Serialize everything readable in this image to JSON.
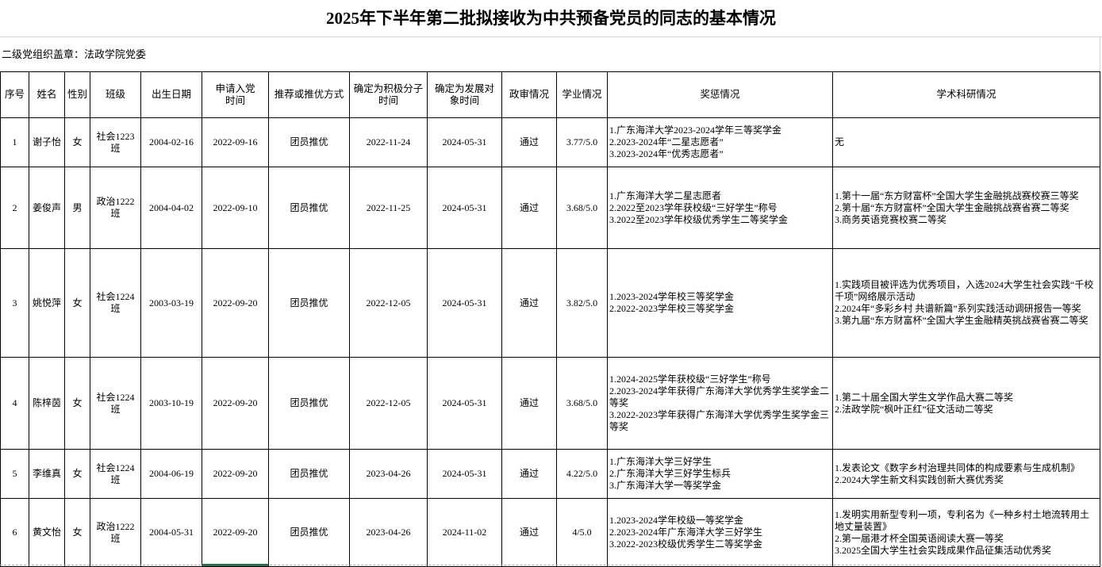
{
  "title": "2025年下半年第二批拟接收为中共预备党员的同志的基本情况",
  "org_line": "二级党组织盖章：法政学院党委",
  "columns": [
    "序号",
    "姓名",
    "性别",
    "班级",
    "出生日期",
    "申请入党\n时间",
    "推荐或推优方式",
    "确定为积极分子\n时间",
    "确定为发展对\n象时间",
    "政审情况",
    "学业情况",
    "奖惩情况",
    "学术科研情况"
  ],
  "rows": [
    {
      "no": "1",
      "name": "谢子怡",
      "gender": "女",
      "class": "社会1223班",
      "birth": "2004-02-16",
      "apply": "2022-09-16",
      "method": "团员推优",
      "activist": "2022-11-24",
      "candidate": "2024-05-31",
      "review": "通过",
      "grade": "3.77/5.0",
      "awards": [
        "1.广东海洋大学2023-2024学年三等奖学金",
        "2.2023-2024年“二星志愿者”",
        "3.2023-2024年“优秀志愿者”"
      ],
      "research": [
        "无"
      ]
    },
    {
      "no": "2",
      "name": "姜俊声",
      "gender": "男",
      "class": "政治1222班",
      "birth": "2004-04-02",
      "apply": "2022-09-10",
      "method": "团员推优",
      "activist": "2022-11-25",
      "candidate": "2024-05-31",
      "review": "通过",
      "grade": "3.68/5.0",
      "awards": [
        "1.广东海洋大学二星志愿者",
        "2.2022至2023学年获校级“三好学生”称号",
        "3.2022至2023学年校级优秀学生二等奖学金"
      ],
      "research": [
        "1.第十一届“东方财富杯”全国大学生金融挑战赛校赛三等奖",
        "2.第十届“东方财富杯”全国大学生金融挑战赛省赛二等奖",
        "3.商务英语竞赛校赛二等奖"
      ]
    },
    {
      "no": "3",
      "name": "姚悦萍",
      "gender": "女",
      "class": "社会1224班",
      "birth": "2003-03-19",
      "apply": "2022-09-20",
      "method": "团员推优",
      "activist": "2022-12-05",
      "candidate": "2024-05-31",
      "review": "通过",
      "grade": "3.82/5.0",
      "awards": [
        "1.2023-2024学年校三等奖学金",
        "2.2022-2023学年校三等奖学金"
      ],
      "research": [
        "1.实践项目被评选为优秀项目，入选2024大学生社会实践“千校千项”网络展示活动",
        "2.2024年“多彩乡村 共谱新篇”系列实践活动调研报告一等奖",
        "3.第九届“东方财富杯”全国大学生金融精英挑战赛省赛二等奖"
      ]
    },
    {
      "no": "4",
      "name": "陈梓茵",
      "gender": "女",
      "class": "社会1224班",
      "birth": "2003-10-19",
      "apply": "2022-09-20",
      "method": "团员推优",
      "activist": "2022-12-05",
      "candidate": "2024-05-31",
      "review": "通过",
      "grade": "3.68/5.0",
      "awards": [
        "1.2024-2025学年获校级“三好学生”称号",
        "2.2023-2024学年获得广东海洋大学优秀学生奖学金二等奖",
        "3.2022-2023学年获得广东海洋大学优秀学生奖学金三等奖"
      ],
      "research": [
        "1.第二十届全国大学生文学作品大赛二等奖",
        "2.法政学院“枫叶正红”征文活动二等奖"
      ]
    },
    {
      "no": "5",
      "name": "李维真",
      "gender": "女",
      "class": "社会1224班",
      "birth": "2004-06-19",
      "apply": "2022-09-20",
      "method": "团员推优",
      "activist": "2023-04-26",
      "candidate": "2024-05-31",
      "review": "通过",
      "grade": "4.22/5.0",
      "awards": [
        "1.广东海洋大学三好学生",
        "2.广东海洋大学三好学生标兵",
        "3.广东海洋大学一等奖学金"
      ],
      "research": [
        "1.发表论文《数字乡村治理共同体的构成要素与生成机制》",
        "2.2024大学生新文科实践创新大赛优秀奖"
      ]
    },
    {
      "no": "6",
      "name": "黄文怡",
      "gender": "女",
      "class": "政治1222班",
      "birth": "2004-05-31",
      "apply": "2022-09-20",
      "method": "团员推优",
      "activist": "2023-04-26",
      "candidate": "2024-11-02",
      "review": "通过",
      "grade": "4/5.0",
      "awards": [
        "1.2023-2024学年校级一等奖学金",
        "2.2023-2024年广东海洋大学三好学生",
        "3.2022-2023校级优秀学生二等奖学金"
      ],
      "research": [
        "1.发明实用新型专利一项，专利名为《一种乡村土地流转用土地丈量装置》",
        "2.第一届港才杯全国英语阅读大赛一等奖",
        "3.2025全国大学生社会实践成果作品征集活动优秀奖"
      ]
    }
  ]
}
